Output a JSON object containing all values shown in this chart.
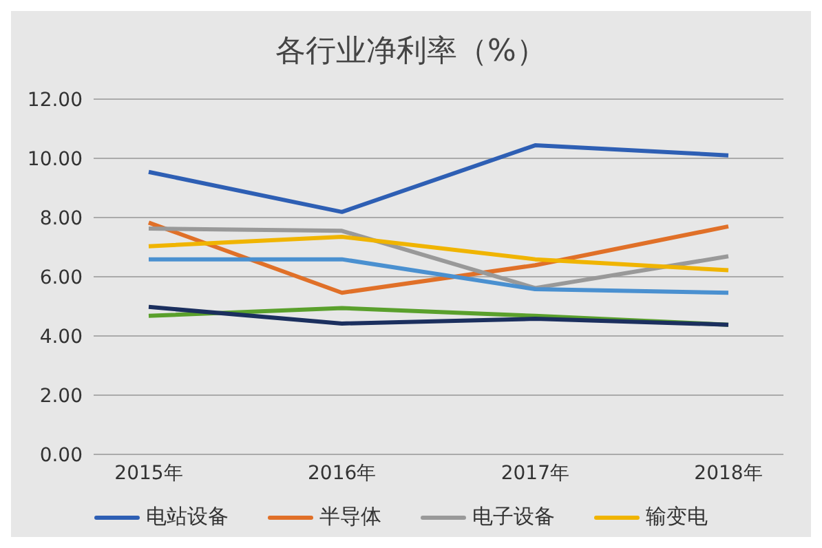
{
  "chart_data": {
    "type": "line",
    "title": "各行业净利率（%）",
    "categories": [
      "2015年",
      "2016年",
      "2017年",
      "2018年"
    ],
    "series": [
      {
        "name": "电站设备",
        "color": "#2e5fb4",
        "values": [
          9.54,
          8.19,
          10.44,
          10.1
        ]
      },
      {
        "name": "半导体",
        "color": "#e07028",
        "values": [
          7.83,
          5.46,
          6.39,
          7.7
        ]
      },
      {
        "name": "电子设备",
        "color": "#999999",
        "values": [
          7.63,
          7.55,
          5.62,
          6.69
        ]
      },
      {
        "name": "输变电",
        "color": "#f0b400",
        "values": [
          7.03,
          7.35,
          6.59,
          6.22
        ]
      },
      {
        "color": "#4a90d0",
        "values": [
          6.59,
          6.59,
          5.58,
          5.46
        ]
      },
      {
        "color": "#5aa02c",
        "values": [
          4.68,
          4.94,
          4.68,
          4.38
        ]
      },
      {
        "color": "#1b2f5e",
        "values": [
          4.98,
          4.42,
          4.58,
          4.38
        ]
      }
    ],
    "ylim": [
      0,
      12
    ],
    "yticks": [
      {
        "value": 0,
        "label": "0.00"
      },
      {
        "value": 2,
        "label": "2.00"
      },
      {
        "value": 4,
        "label": "4.00"
      },
      {
        "value": 6,
        "label": "6.00"
      },
      {
        "value": 8,
        "label": "8.00"
      },
      {
        "value": 10,
        "label": "10.00"
      },
      {
        "value": 12,
        "label": "12.00"
      }
    ],
    "grid": "y",
    "legend": "bottom",
    "marker": "none",
    "line_style": "solid"
  }
}
